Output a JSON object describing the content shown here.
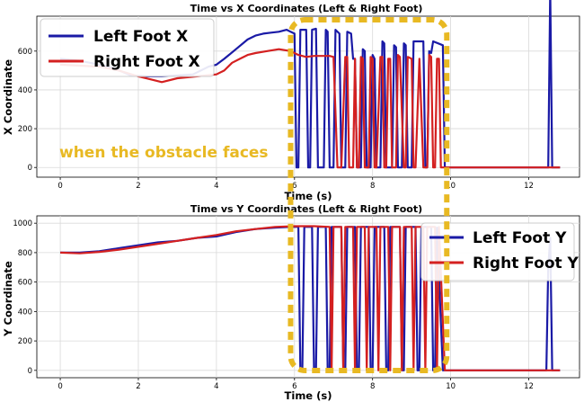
{
  "annotation": {
    "text": "when the obstacle faces",
    "color": "#e8b923",
    "highlight_x_range": [
      5.9,
      9.9
    ]
  },
  "colors": {
    "left": "#1a1aa6",
    "right": "#d42020"
  },
  "chart_data": [
    {
      "type": "line",
      "title": "Time vs X Coordinates (Left & Right Foot)",
      "xlabel": "Time (s)",
      "ylabel": "X Coordinate",
      "xlim": [
        -0.6,
        13.3
      ],
      "ylim": [
        -50,
        780
      ],
      "xticks": [
        0,
        2,
        4,
        6,
        8,
        10,
        12
      ],
      "yticks": [
        0,
        200,
        400,
        600
      ],
      "grid": true,
      "legend_position": "top-left",
      "series": [
        {
          "name": "Left Foot X",
          "color": "#1a1aa6",
          "x": [
            0,
            0.5,
            1.0,
            1.4,
            1.8,
            2.2,
            2.6,
            3.0,
            3.4,
            3.8,
            4.0,
            4.2,
            4.5,
            4.8,
            5.0,
            5.2,
            5.4,
            5.6,
            5.8,
            5.9,
            6.0,
            6.05,
            6.1,
            6.15,
            6.3,
            6.35,
            6.4,
            6.45,
            6.55,
            6.6,
            6.75,
            6.8,
            6.85,
            6.9,
            7.0,
            7.05,
            7.15,
            7.2,
            7.3,
            7.35,
            7.45,
            7.5,
            7.55,
            7.6,
            7.7,
            7.75,
            7.8,
            7.85,
            7.95,
            8.0,
            8.05,
            8.1,
            8.2,
            8.25,
            8.3,
            8.35,
            8.5,
            8.55,
            8.6,
            8.65,
            8.75,
            8.8,
            8.85,
            8.9,
            9.0,
            9.05,
            9.3,
            9.35,
            9.4,
            9.45,
            9.5,
            9.55,
            9.8,
            9.85,
            10.0,
            10.5,
            11.0,
            11.5,
            12.0,
            12.4,
            12.5,
            12.55,
            12.6,
            12.65,
            12.8
          ],
          "values": [
            560,
            550,
            530,
            510,
            475,
            470,
            470,
            475,
            480,
            520,
            530,
            560,
            610,
            660,
            680,
            690,
            695,
            700,
            710,
            700,
            690,
            0,
            0,
            710,
            710,
            0,
            0,
            710,
            715,
            0,
            0,
            710,
            700,
            0,
            0,
            710,
            690,
            0,
            0,
            700,
            690,
            560,
            560,
            0,
            0,
            610,
            600,
            0,
            0,
            580,
            560,
            0,
            0,
            650,
            640,
            0,
            0,
            630,
            620,
            0,
            0,
            640,
            630,
            0,
            0,
            650,
            650,
            0,
            0,
            600,
            590,
            650,
            630,
            0,
            0,
            0,
            0,
            0,
            0,
            0,
            0,
            920,
            0,
            0,
            0
          ]
        },
        {
          "name": "Right Foot X",
          "color": "#d42020",
          "x": [
            0,
            0.5,
            1.0,
            1.5,
            2.0,
            2.3,
            2.6,
            3.0,
            3.5,
            4.0,
            4.2,
            4.4,
            4.6,
            4.8,
            5.0,
            5.3,
            5.6,
            5.9,
            6.1,
            6.3,
            6.5,
            6.9,
            7.0,
            7.1,
            7.2,
            7.3,
            7.35,
            7.4,
            7.5,
            7.55,
            7.6,
            7.65,
            7.7,
            7.75,
            7.8,
            7.9,
            7.95,
            8.0,
            8.05,
            8.1,
            8.2,
            8.25,
            8.3,
            8.35,
            8.4,
            8.45,
            8.5,
            8.6,
            8.65,
            8.7,
            8.8,
            8.85,
            8.9,
            9.0,
            9.05,
            9.1,
            9.2,
            9.3,
            9.4,
            9.45,
            9.5,
            9.55,
            9.6,
            9.65,
            9.7,
            9.75,
            9.8,
            9.9,
            10.5,
            11.0,
            11.5,
            12.0,
            12.5,
            12.8
          ],
          "values": [
            530,
            525,
            520,
            500,
            470,
            455,
            440,
            460,
            470,
            480,
            500,
            540,
            560,
            580,
            590,
            600,
            610,
            600,
            580,
            570,
            575,
            575,
            570,
            0,
            0,
            570,
            570,
            0,
            0,
            560,
            0,
            0,
            570,
            560,
            0,
            0,
            570,
            560,
            0,
            0,
            570,
            570,
            0,
            0,
            560,
            560,
            0,
            0,
            580,
            570,
            0,
            0,
            570,
            560,
            0,
            0,
            560,
            0,
            0,
            580,
            570,
            0,
            0,
            560,
            560,
            0,
            0,
            0,
            0,
            0,
            0,
            0,
            0,
            0
          ]
        }
      ]
    },
    {
      "type": "line",
      "title": "Time vs Y Coordinates (Left & Right Foot)",
      "xlabel": "Time (s)",
      "ylabel": "Y Coordinate",
      "xlim": [
        -0.6,
        13.3
      ],
      "ylim": [
        -50,
        1050
      ],
      "xticks": [
        0,
        2,
        4,
        6,
        8,
        10,
        12
      ],
      "yticks": [
        0,
        200,
        400,
        600,
        800,
        1000
      ],
      "grid": true,
      "legend_position": "center-right",
      "series": [
        {
          "name": "Left Foot Y",
          "color": "#1a1aa6",
          "x": [
            0,
            0.5,
            1.0,
            1.5,
            2.0,
            2.5,
            3.0,
            3.5,
            4.0,
            4.5,
            5.0,
            5.5,
            5.9,
            6.1,
            6.15,
            6.2,
            6.25,
            6.45,
            6.5,
            6.55,
            6.6,
            6.8,
            6.85,
            6.9,
            6.95,
            7.2,
            7.25,
            7.3,
            7.35,
            7.55,
            7.6,
            7.65,
            7.7,
            7.9,
            7.95,
            8.0,
            8.05,
            8.3,
            8.35,
            8.4,
            8.45,
            8.7,
            8.75,
            8.8,
            8.85,
            9.1,
            9.15,
            9.2,
            9.25,
            9.5,
            9.55,
            9.6,
            9.65,
            9.8,
            10.0,
            11.0,
            12.0,
            12.45,
            12.5,
            12.55,
            12.6,
            12.8
          ],
          "values": [
            800,
            800,
            810,
            830,
            850,
            870,
            880,
            900,
            910,
            940,
            960,
            970,
            975,
            975,
            0,
            0,
            975,
            975,
            0,
            0,
            975,
            975,
            0,
            0,
            975,
            975,
            0,
            0,
            975,
            975,
            0,
            0,
            975,
            975,
            0,
            0,
            975,
            975,
            0,
            0,
            975,
            975,
            0,
            0,
            975,
            975,
            0,
            0,
            975,
            975,
            0,
            0,
            970,
            0,
            0,
            0,
            0,
            0,
            700,
            900,
            0,
            0
          ]
        },
        {
          "name": "Right Foot Y",
          "color": "#d42020",
          "x": [
            0,
            0.5,
            1.0,
            1.5,
            2.0,
            2.5,
            3.0,
            3.5,
            4.0,
            4.5,
            5.0,
            5.5,
            6.0,
            6.5,
            6.9,
            6.95,
            7.0,
            7.2,
            7.25,
            7.3,
            7.5,
            7.55,
            7.6,
            7.8,
            7.85,
            7.9,
            8.1,
            8.15,
            8.2,
            8.4,
            8.45,
            8.5,
            8.7,
            8.75,
            8.8,
            9.0,
            9.05,
            9.1,
            9.3,
            9.35,
            9.4,
            9.6,
            9.65,
            9.7,
            9.85,
            10.0,
            11.0,
            12.0,
            12.8
          ],
          "values": [
            800,
            795,
            805,
            820,
            840,
            860,
            880,
            900,
            920,
            945,
            960,
            975,
            980,
            980,
            975,
            0,
            975,
            975,
            0,
            975,
            975,
            0,
            975,
            975,
            0,
            975,
            975,
            0,
            975,
            975,
            0,
            975,
            975,
            0,
            975,
            975,
            0,
            975,
            975,
            0,
            975,
            975,
            0,
            975,
            0,
            0,
            0,
            0,
            0
          ]
        }
      ]
    }
  ]
}
